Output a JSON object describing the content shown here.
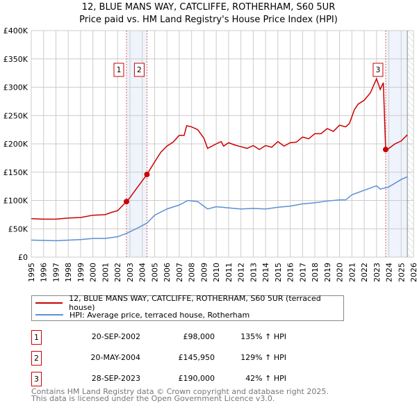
{
  "chart_data": {
    "type": "line",
    "title": "12, BLUE MANS WAY, CATCLIFFE, ROTHERHAM, S60 5UR",
    "subtitle": "Price paid vs. HM Land Registry's House Price Index (HPI)",
    "xlim": [
      1995,
      2026
    ],
    "ylim": [
      0,
      400000
    ],
    "y_ticks": [
      0,
      50000,
      100000,
      150000,
      200000,
      250000,
      300000,
      350000,
      400000
    ],
    "y_tick_labels": [
      "£0",
      "£50K",
      "£100K",
      "£150K",
      "£200K",
      "£250K",
      "£300K",
      "£350K",
      "£400K"
    ],
    "x_ticks": [
      "1995",
      "1996",
      "1997",
      "1998",
      "1999",
      "2000",
      "2001",
      "2002",
      "2003",
      "2004",
      "2005",
      "2006",
      "2007",
      "2008",
      "2009",
      "2010",
      "2011",
      "2012",
      "2013",
      "2014",
      "2015",
      "2016",
      "2017",
      "2018",
      "2019",
      "2020",
      "2021",
      "2022",
      "2023",
      "2024",
      "2025",
      "2026"
    ],
    "grid": true,
    "series": [
      {
        "name": "12, BLUE MANS WAY, CATCLIFFE, ROTHERHAM, S60 5UR (terraced house)",
        "color": "#cc0000",
        "x": [
          1995,
          1996,
          1997,
          1998,
          1999,
          2000,
          2001,
          2001.5,
          2002,
          2002.72,
          2003,
          2003.5,
          2004.38,
          2005,
          2005.5,
          2006,
          2006.5,
          2007,
          2007.4,
          2007.6,
          2008,
          2008.5,
          2009,
          2009.3,
          2010,
          2010.4,
          2010.6,
          2011,
          2011.5,
          2012,
          2012.5,
          2013,
          2013.5,
          2014,
          2014.5,
          2015,
          2015.5,
          2016,
          2016.5,
          2017,
          2017.5,
          2018,
          2018.5,
          2019,
          2019.5,
          2020,
          2020.5,
          2020.8,
          2021.2,
          2021.5,
          2022,
          2022.5,
          2023,
          2023.3,
          2023.55,
          2023.74,
          2024,
          2024.5,
          2025,
          2025.5
        ],
        "y": [
          68000,
          67000,
          67000,
          69000,
          70000,
          74000,
          75000,
          79000,
          82000,
          98000,
          105000,
          120000,
          145950,
          168000,
          185000,
          196000,
          203000,
          215000,
          215000,
          232000,
          230000,
          225000,
          210000,
          192000,
          200000,
          204000,
          196000,
          202000,
          198000,
          195000,
          192000,
          197000,
          190000,
          197000,
          194000,
          204000,
          196000,
          202000,
          203000,
          212000,
          209000,
          218000,
          218000,
          227000,
          222000,
          233000,
          230000,
          236000,
          260000,
          270000,
          277000,
          290000,
          315000,
          296000,
          308000,
          190000,
          192000,
          200000,
          205000,
          216000
        ]
      },
      {
        "name": "HPI: Average price, terraced house, Rotherham",
        "color": "#5b8fd4",
        "x": [
          1995,
          1997,
          1999,
          2000,
          2001,
          2002,
          2002.72,
          2003.5,
          2004.38,
          2005,
          2006,
          2007,
          2007.7,
          2008.5,
          2009.3,
          2010,
          2011,
          2012,
          2013,
          2014,
          2015,
          2016,
          2017,
          2018,
          2019,
          2020,
          2020.5,
          2021,
          2022,
          2023,
          2023.3,
          2024,
          2025,
          2025.5
        ],
        "y": [
          30000,
          29000,
          31000,
          33000,
          33000,
          36000,
          42000,
          50000,
          60000,
          74000,
          85000,
          92000,
          100000,
          98000,
          85000,
          89000,
          87000,
          85000,
          86000,
          85000,
          88000,
          90000,
          94000,
          96000,
          99000,
          101000,
          101000,
          110000,
          118000,
          126000,
          120000,
          124000,
          137000,
          142000
        ]
      }
    ],
    "sales": [
      {
        "label": "1",
        "x": 2002.72,
        "price": 98000,
        "date": "20-SEP-2002",
        "price_text": "£98,000",
        "hpi": "135% ↑ HPI"
      },
      {
        "label": "2",
        "x": 2004.38,
        "price": 145950,
        "date": "20-MAY-2004",
        "price_text": "£145,950",
        "hpi": "129% ↑ HPI"
      },
      {
        "label": "3",
        "x": 2023.74,
        "price": 190000,
        "date": "28-SEP-2023",
        "price_text": "£190,000",
        "hpi": "42% ↑ HPI"
      }
    ],
    "shaded_ranges": [
      [
        2002.72,
        2004.38
      ],
      [
        2023.74,
        2025.5
      ]
    ],
    "data_end": 2025.5,
    "legend_placement": "below"
  },
  "footer": [
    "Contains HM Land Registry data © Crown copyright and database right 2025.",
    "This data is licensed under the Open Government Licence v3.0."
  ]
}
